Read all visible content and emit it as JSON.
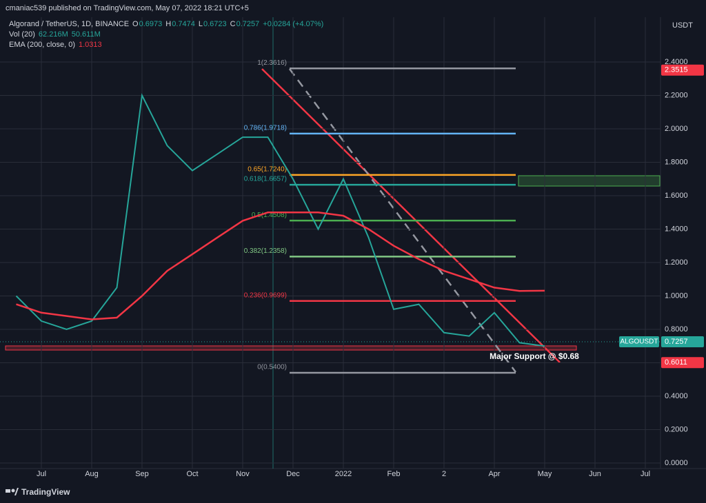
{
  "header": {
    "author": "cmaniac539 published on TradingView.com, May 07, 2022 18:21 UTC+5",
    "ohlc": [
      {
        "key": "O",
        "value": 0.6973
      },
      {
        "key": "H",
        "value": 0.7474
      },
      {
        "key": "L",
        "value": 0.6723
      },
      {
        "key": "C",
        "value": 0.7257
      }
    ],
    "change": "+0.0284 (+4.07%)",
    "volume": {
      "name": "Vol (20)",
      "values": [
        "62.216M",
        "50.611M"
      ]
    },
    "ema_value": 1.0313,
    "currency": "USDT"
  },
  "footer": {
    "brand": "TradingView"
  },
  "chart_data": {
    "type": "line",
    "categories": [
      null,
      "Jul",
      null,
      "Aug",
      null,
      "Sep",
      null,
      "Oct",
      null,
      "Nov",
      null,
      "Dec",
      null,
      "2022",
      null,
      "Feb",
      null,
      "2",
      null,
      "Apr",
      null,
      "May",
      null,
      "Jun",
      null,
      "Jul"
    ],
    "series": [
      {
        "name": "Algorand / TetherUS, 1D, BINANCE",
        "color": "#26a69a",
        "values": [
          1.0,
          0.85,
          0.8,
          0.85,
          1.05,
          2.2,
          1.9,
          1.75,
          1.85,
          1.95,
          1.95,
          1.7,
          1.4,
          1.7,
          1.35,
          0.92,
          0.95,
          0.78,
          0.76,
          0.9,
          0.72,
          0.7,
          null,
          null,
          null,
          null
        ]
      },
      {
        "name": "EMA (200, close, 0)",
        "color": "#f23645",
        "values": [
          0.95,
          0.9,
          0.88,
          0.86,
          0.87,
          1.0,
          1.15,
          1.25,
          1.35,
          1.45,
          1.5,
          1.5,
          1.5,
          1.48,
          1.4,
          1.3,
          1.22,
          1.15,
          1.1,
          1.05,
          1.03,
          1.0313,
          null,
          null,
          null,
          null
        ]
      }
    ],
    "ylim": [
      0,
      2.65
    ],
    "yticks": [
      {
        "value": 0,
        "label": "0.0000"
      },
      {
        "value": 0.2,
        "label": "0.2000"
      },
      {
        "value": 0.4,
        "label": "0.4000"
      },
      {
        "value": 0.6,
        "label": "0.6000"
      },
      {
        "value": 0.8,
        "label": "0.8000"
      },
      {
        "value": 1,
        "label": "1.0000"
      },
      {
        "value": 1.2,
        "label": "1.2000"
      },
      {
        "value": 1.4,
        "label": "1.4000"
      },
      {
        "value": 1.6,
        "label": "1.6000"
      },
      {
        "value": 1.8,
        "label": "1.8000"
      },
      {
        "value": 2,
        "label": "2.0000"
      },
      {
        "value": 2.2,
        "label": "2.2000"
      },
      {
        "value": 2.4,
        "label": "2.4000"
      }
    ],
    "grid": true,
    "fib_levels": [
      {
        "label": "1(2.3616)",
        "value": 2.3616,
        "color": "#9598a1"
      },
      {
        "label": "0.786(1.9718)",
        "value": 1.9718,
        "color": "#64b5f6"
      },
      {
        "label": "0.65(1.7240)",
        "value": 1.724,
        "color": "#ffa726"
      },
      {
        "label": "0.618(1.6657)",
        "value": 1.6657,
        "color": "#26a69a"
      },
      {
        "label": "0.5(1.4508)",
        "value": 1.4508,
        "color": "#4caf50"
      },
      {
        "label": "0.382(1.2358)",
        "value": 1.2358,
        "color": "#81c784"
      },
      {
        "label": "0.236(0.9699)",
        "value": 0.9699,
        "color": "#f23645"
      },
      {
        "label": "0(0.5400)",
        "value": 0.54,
        "color": "#9598a1"
      }
    ],
    "price_tags": [
      {
        "value": 2.3515,
        "color": "#f23645"
      },
      {
        "name": "ALGOUSDT",
        "value": 0.7257,
        "color": "#26a69a"
      },
      {
        "value": 0.6011,
        "color": "#f23645"
      }
    ],
    "annotation": "Major Support @ $0.68"
  }
}
